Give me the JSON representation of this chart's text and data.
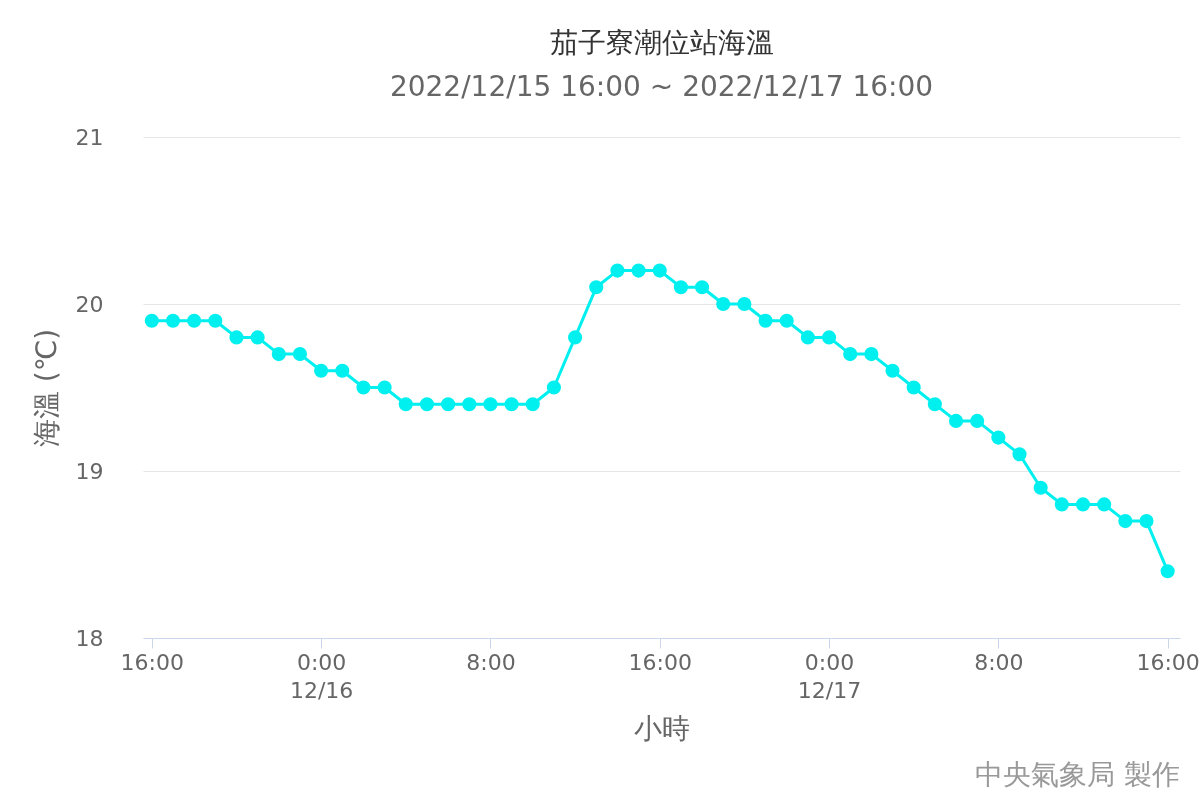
{
  "chart_data": {
    "type": "line",
    "title": "茄子寮潮位站海溫",
    "subtitle": "2022/12/15 16:00 ~ 2022/12/17 16:00",
    "xlabel": "小時",
    "ylabel": "海溫 (℃)",
    "annotations": [
      "中央氣象局 製作"
    ],
    "x": [
      "2022-12-15T16:00",
      "2022-12-15T17:00",
      "2022-12-15T18:00",
      "2022-12-15T19:00",
      "2022-12-15T20:00",
      "2022-12-15T21:00",
      "2022-12-15T22:00",
      "2022-12-15T23:00",
      "2022-12-16T00:00",
      "2022-12-16T01:00",
      "2022-12-16T02:00",
      "2022-12-16T03:00",
      "2022-12-16T04:00",
      "2022-12-16T05:00",
      "2022-12-16T06:00",
      "2022-12-16T07:00",
      "2022-12-16T08:00",
      "2022-12-16T09:00",
      "2022-12-16T10:00",
      "2022-12-16T11:00",
      "2022-12-16T12:00",
      "2022-12-16T13:00",
      "2022-12-16T14:00",
      "2022-12-16T15:00",
      "2022-12-16T16:00",
      "2022-12-16T17:00",
      "2022-12-16T18:00",
      "2022-12-16T19:00",
      "2022-12-16T20:00",
      "2022-12-16T21:00",
      "2022-12-16T22:00",
      "2022-12-16T23:00",
      "2022-12-17T00:00",
      "2022-12-17T01:00",
      "2022-12-17T02:00",
      "2022-12-17T03:00",
      "2022-12-17T04:00",
      "2022-12-17T05:00",
      "2022-12-17T06:00",
      "2022-12-17T07:00",
      "2022-12-17T08:00",
      "2022-12-17T09:00",
      "2022-12-17T10:00",
      "2022-12-17T11:00",
      "2022-12-17T12:00",
      "2022-12-17T13:00",
      "2022-12-17T14:00",
      "2022-12-17T15:00",
      "2022-12-17T16:00"
    ],
    "series": [
      {
        "color": "#00f0f0",
        "values": [
          19.9,
          19.9,
          19.9,
          19.9,
          19.8,
          19.8,
          19.7,
          19.7,
          19.6,
          19.6,
          19.5,
          19.5,
          19.4,
          19.4,
          19.4,
          19.4,
          19.4,
          19.4,
          19.4,
          19.5,
          19.8,
          20.1,
          20.2,
          20.2,
          20.2,
          20.1,
          20.1,
          20.0,
          20.0,
          19.9,
          19.9,
          19.8,
          19.8,
          19.7,
          19.7,
          19.6,
          19.5,
          19.4,
          19.3,
          19.3,
          19.2,
          19.1,
          18.9,
          18.8,
          18.8,
          18.8,
          18.7,
          18.7,
          18.4
        ]
      }
    ],
    "xlim": [
      "2022-12-15T15:35",
      "2022-12-17T16:35"
    ],
    "xticks": [
      {
        "value": "2022-12-15T16:00",
        "label": "16:00"
      },
      {
        "value": "2022-12-16T00:00",
        "label": "0:00\n12/16"
      },
      {
        "value": "2022-12-16T08:00",
        "label": "8:00"
      },
      {
        "value": "2022-12-16T16:00",
        "label": "16:00"
      },
      {
        "value": "2022-12-17T00:00",
        "label": "0:00\n12/17"
      },
      {
        "value": "2022-12-17T08:00",
        "label": "8:00"
      },
      {
        "value": "2022-12-17T16:00",
        "label": "16:00"
      }
    ],
    "ylim": [
      18,
      21
    ],
    "yticks": [
      18,
      19,
      20,
      21
    ],
    "grid": "y",
    "marker": "circle"
  }
}
